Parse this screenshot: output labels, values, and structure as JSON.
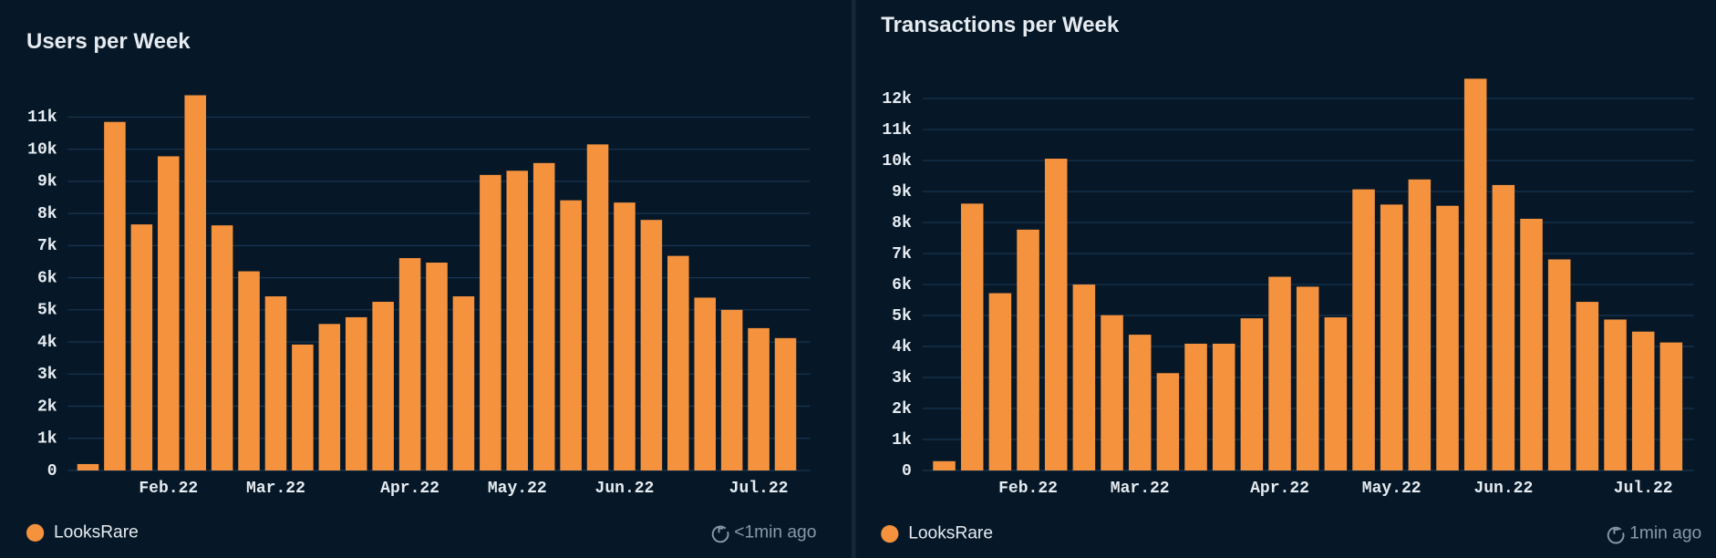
{
  "chart_data": [
    {
      "type": "bar",
      "title": "Users per Week",
      "categories": [
        null,
        null,
        null,
        "Feb.22",
        null,
        null,
        null,
        "Mar.22",
        null,
        null,
        null,
        null,
        "Apr.22",
        null,
        null,
        null,
        "May.22",
        null,
        null,
        null,
        "Jun.22",
        null,
        null,
        null,
        null,
        "Jul.22",
        null
      ],
      "series": [
        {
          "name": "LooksRare",
          "color": "#f5923e",
          "values": [
            200,
            10850,
            7660,
            9780,
            11680,
            7630,
            6200,
            5420,
            3920,
            4560,
            4770,
            5250,
            6610,
            6470,
            5420,
            9200,
            9330,
            9570,
            8410,
            10150,
            8340,
            7800,
            6680,
            5380,
            5000,
            4430,
            4120
          ]
        }
      ],
      "ylim": [
        0,
        11900
      ],
      "yticks": [
        0,
        {
          "value": 1000,
          "label": "1k"
        },
        {
          "value": 2000,
          "label": "2k"
        },
        {
          "value": 3000,
          "label": "3k"
        },
        {
          "value": 4000,
          "label": "4k"
        },
        {
          "value": 5000,
          "label": "5k"
        },
        {
          "value": 6000,
          "label": "6k"
        },
        {
          "value": 7000,
          "label": "7k"
        },
        {
          "value": 8000,
          "label": "8k"
        },
        {
          "value": 9000,
          "label": "9k"
        },
        {
          "value": 10000,
          "label": "10k"
        },
        {
          "value": 11000,
          "label": "11k"
        }
      ],
      "grid": true,
      "updated": "<1min ago"
    },
    {
      "type": "bar",
      "title": "Transactions per Week",
      "categories": [
        null,
        null,
        null,
        "Feb.22",
        null,
        null,
        null,
        "Mar.22",
        null,
        null,
        null,
        null,
        "Apr.22",
        null,
        null,
        null,
        "May.22",
        null,
        null,
        null,
        "Jun.22",
        null,
        null,
        null,
        null,
        "Jul.22",
        null
      ],
      "series": [
        {
          "name": "LooksRare",
          "color": "#f5923e",
          "values": [
            300,
            8610,
            5720,
            7770,
            10060,
            6000,
            5010,
            4380,
            3140,
            4090,
            4090,
            4910,
            6250,
            5930,
            4940,
            9070,
            8580,
            9390,
            8540,
            12640,
            9210,
            8120,
            6810,
            5440,
            4870,
            4480,
            4130
          ]
        }
      ],
      "ylim": [
        0,
        12800
      ],
      "yticks": [
        0,
        {
          "value": 1000,
          "label": "1k"
        },
        {
          "value": 2000,
          "label": "2k"
        },
        {
          "value": 3000,
          "label": "3k"
        },
        {
          "value": 4000,
          "label": "4k"
        },
        {
          "value": 5000,
          "label": "5k"
        },
        {
          "value": 6000,
          "label": "6k"
        },
        {
          "value": 7000,
          "label": "7k"
        },
        {
          "value": 8000,
          "label": "8k"
        },
        {
          "value": 9000,
          "label": "9k"
        },
        {
          "value": 10000,
          "label": "10k"
        },
        {
          "value": 11000,
          "label": "11k"
        },
        {
          "value": 12000,
          "label": "12k"
        }
      ],
      "grid": true,
      "updated": "1min ago"
    }
  ]
}
